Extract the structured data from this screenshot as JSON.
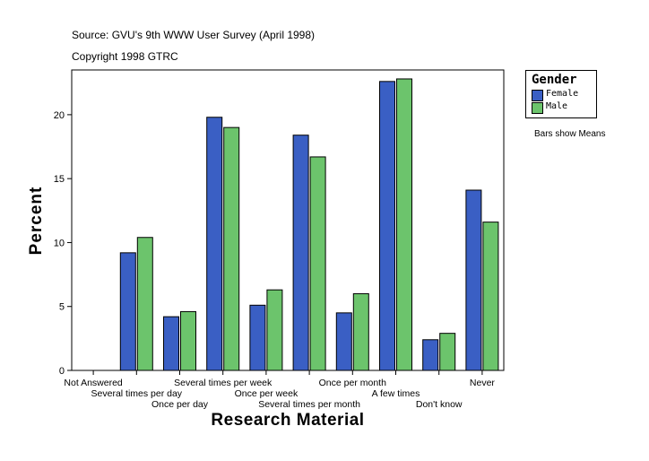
{
  "header": {
    "source": "Source: GVU's 9th WWW User Survey (April 1998)",
    "copyright": "Copyright 1998 GTRC"
  },
  "legend": {
    "title": "Gender",
    "items": [
      {
        "label": "Female",
        "color": "#3a5fc4"
      },
      {
        "label": "Male",
        "color": "#6cc46c"
      }
    ],
    "note": "Bars show Means"
  },
  "chart_data": {
    "type": "bar",
    "title": "",
    "xlabel": "Research Material",
    "ylabel": "Percent",
    "ylim": [
      0,
      23.5
    ],
    "yticks": [
      0,
      5,
      10,
      15,
      20
    ],
    "categories": [
      "Not Answered",
      "Several times per day",
      "Once per day",
      "Several times per week",
      "Once per week",
      "Several times per month",
      "Once per month",
      "A few times",
      "Don't know",
      "Never"
    ],
    "series": [
      {
        "name": "Female",
        "color": "#3a5fc4",
        "values": [
          0,
          9.2,
          4.2,
          19.8,
          5.1,
          18.4,
          4.5,
          22.6,
          2.4,
          14.1
        ]
      },
      {
        "name": "Male",
        "color": "#6cc46c",
        "values": [
          0,
          10.4,
          4.6,
          19.0,
          6.3,
          16.7,
          6.0,
          22.8,
          2.9,
          11.6
        ]
      }
    ],
    "grid": false,
    "legend_position": "right"
  }
}
